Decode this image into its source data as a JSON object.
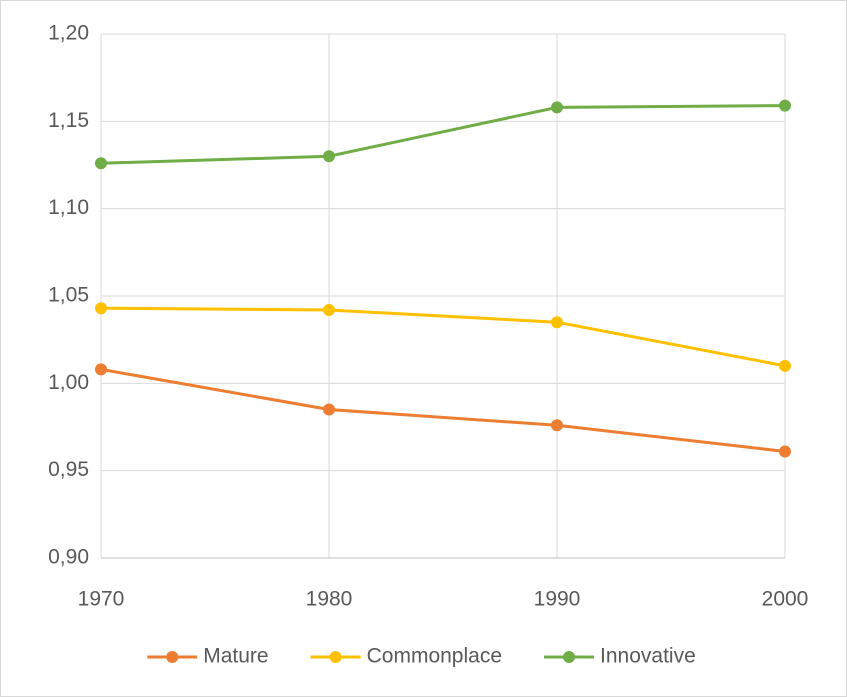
{
  "chart_data": {
    "type": "line",
    "x": [
      1970,
      1980,
      1990,
      2000
    ],
    "series": [
      {
        "name": "Mature",
        "color": "#ed7d31",
        "values": [
          1.008,
          0.985,
          0.976,
          0.961
        ]
      },
      {
        "name": "Commonplace",
        "color": "#ffc000",
        "values": [
          1.043,
          1.042,
          1.035,
          1.01
        ]
      },
      {
        "name": "Innovative",
        "color": "#70ad47",
        "values": [
          1.126,
          1.13,
          1.158,
          1.159
        ]
      }
    ],
    "xlim": [
      1970,
      2000
    ],
    "xticks": [
      1970,
      1980,
      1990,
      2000
    ],
    "ylim": [
      0.9,
      1.2
    ],
    "yticks": [
      {
        "value": 0.9,
        "label": "0,90"
      },
      {
        "value": 0.95,
        "label": "0,95"
      },
      {
        "value": 1.0,
        "label": "1,00"
      },
      {
        "value": 1.05,
        "label": "1,05"
      },
      {
        "value": 1.1,
        "label": "1,10"
      },
      {
        "value": 1.15,
        "label": "1,15"
      },
      {
        "value": 1.2,
        "label": "1,20"
      }
    ],
    "grid": true,
    "legend": "bottom"
  }
}
